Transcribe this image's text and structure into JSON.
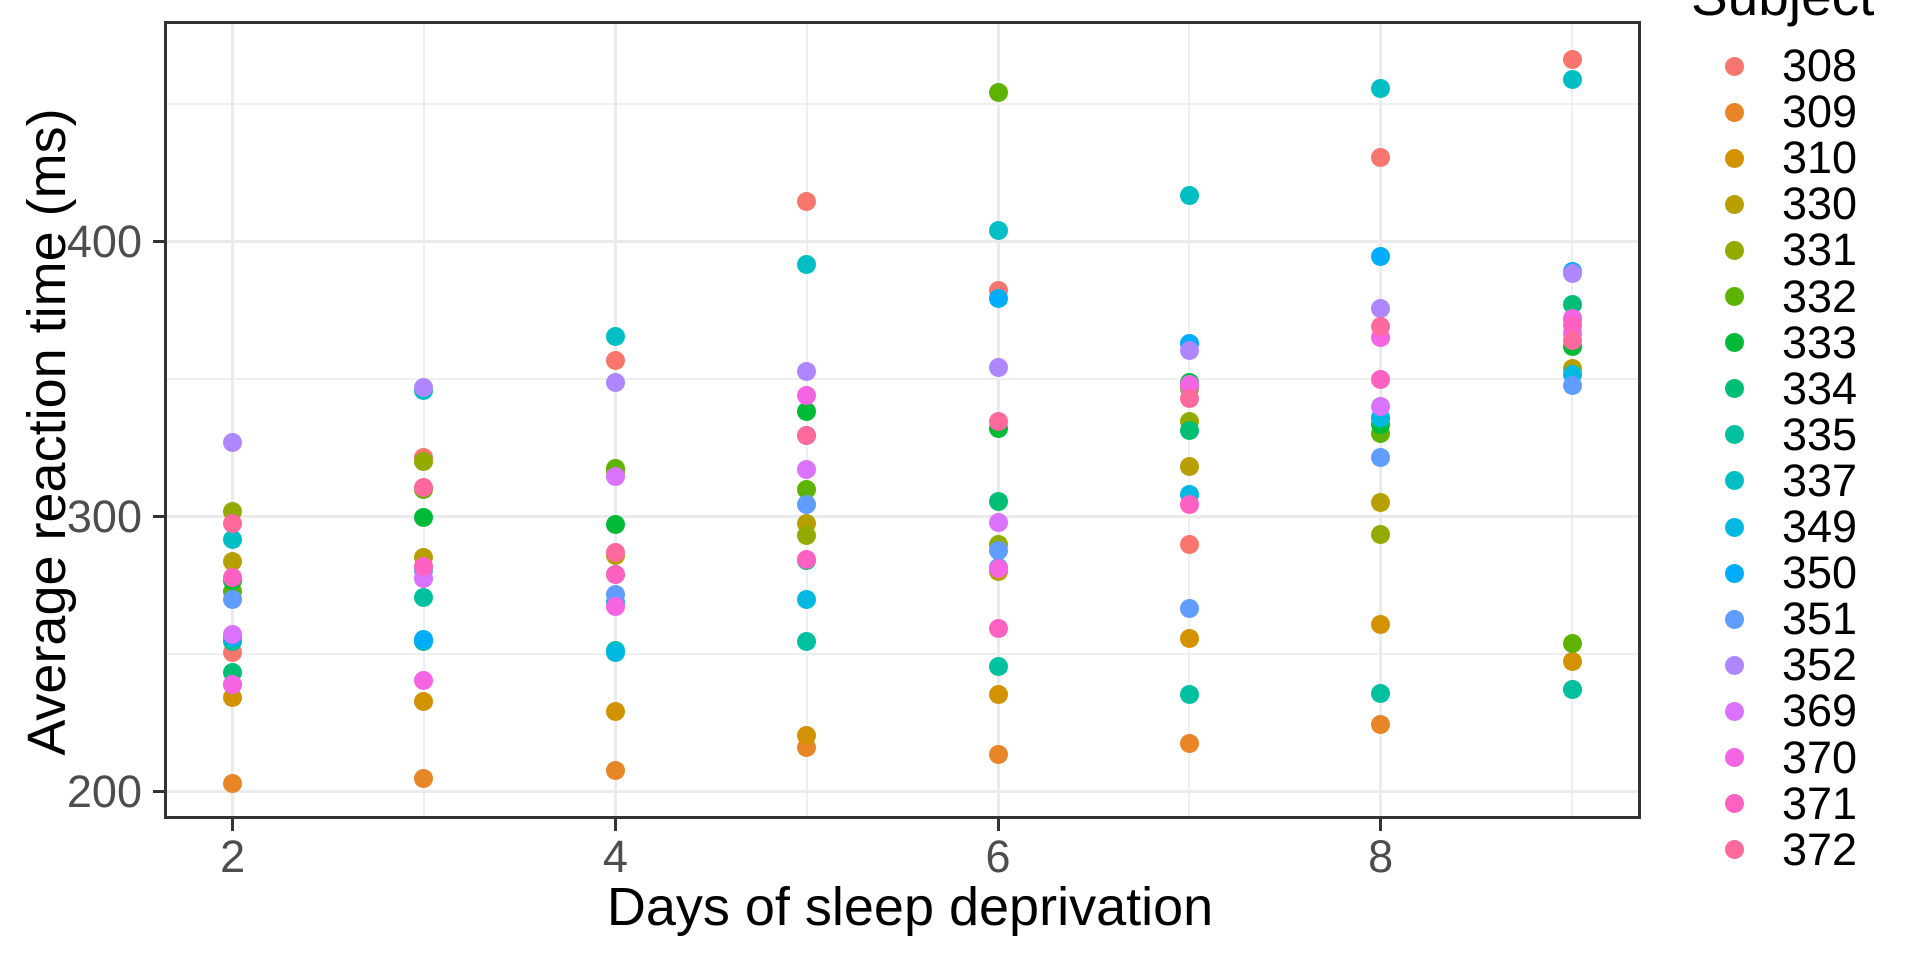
{
  "chart_data": {
    "type": "scatter",
    "xlabel": "Days of sleep deprivation",
    "ylabel": "Average reaction time (ms)",
    "legend_title": "Subject",
    "legend_position": "right-top",
    "grid": true,
    "x": [
      2,
      3,
      4,
      5,
      6,
      7,
      8,
      9
    ],
    "xlim": [
      1.65,
      9.35
    ],
    "ylim": [
      190.9,
      479.6
    ],
    "x_major_ticks": [
      2,
      4,
      6,
      8
    ],
    "x_minor_ticks": [
      3,
      5,
      7,
      9
    ],
    "y_major_ticks": [
      200,
      300,
      400
    ],
    "y_minor_ticks": [
      250,
      350,
      450
    ],
    "series": [
      {
        "name": "308",
        "color": "#F8766D",
        "values": [
          250.8,
          321.4,
          356.9,
          414.7,
          382.2,
          290.1,
          430.6,
          466.4
        ]
      },
      {
        "name": "309",
        "color": "#E88526",
        "values": [
          203.0,
          204.7,
          207.7,
          216.0,
          213.6,
          217.7,
          224.3,
          237.3
        ]
      },
      {
        "name": "310",
        "color": "#D39200",
        "values": [
          234.3,
          232.8,
          229.3,
          220.5,
          235.4,
          255.8,
          261.0,
          247.5
        ]
      },
      {
        "name": "330",
        "color": "#B79F00",
        "values": [
          283.9,
          285.1,
          285.8,
          297.6,
          280.2,
          318.3,
          305.3,
          354.0
        ]
      },
      {
        "name": "331",
        "color": "#93AA00",
        "values": [
          301.8,
          320.1,
          316.3,
          293.3,
          290.1,
          334.8,
          293.7,
          371.6
        ]
      },
      {
        "name": "332",
        "color": "#5EB300",
        "values": [
          273.0,
          309.8,
          317.5,
          310.0,
          454.2,
          346.8,
          330.3,
          253.9
        ]
      },
      {
        "name": "333",
        "color": "#00BA38",
        "values": [
          276.8,
          299.8,
          297.2,
          338.2,
          332.0,
          348.8,
          333.4,
          362.0
        ]
      },
      {
        "name": "334",
        "color": "#00BF74",
        "values": [
          243.4,
          254.7,
          279.0,
          284.2,
          305.5,
          331.5,
          335.7,
          377.3
        ]
      },
      {
        "name": "335",
        "color": "#00C19F",
        "values": [
          254.5,
          270.8,
          251.5,
          254.6,
          245.5,
          235.3,
          235.8,
          237.2
        ]
      },
      {
        "name": "337",
        "color": "#00BFC4",
        "values": [
          291.6,
          346.1,
          365.7,
          391.8,
          404.3,
          416.7,
          455.9,
          458.9
        ]
      },
      {
        "name": "349",
        "color": "#00B9E3",
        "values": [
          238.9,
          254.9,
          250.7,
          269.8,
          281.6,
          308.1,
          336.3,
          351.6
        ]
      },
      {
        "name": "350",
        "color": "#00ADFA",
        "values": [
          256.2,
          255.5,
          268.9,
          329.7,
          379.4,
          362.9,
          394.5,
          389.1
        ]
      },
      {
        "name": "351",
        "color": "#619CFF",
        "values": [
          269.9,
          280.6,
          271.8,
          304.6,
          287.7,
          266.6,
          321.5,
          347.6
        ]
      },
      {
        "name": "352",
        "color": "#AE87FF",
        "values": [
          326.9,
          346.9,
          348.7,
          352.8,
          354.4,
          360.4,
          375.6,
          388.5
        ]
      },
      {
        "name": "369",
        "color": "#DB72FB",
        "values": [
          257.2,
          277.7,
          314.8,
          317.2,
          298.1,
          348.1,
          340.3,
          366.5
        ]
      },
      {
        "name": "370",
        "color": "#F564E3",
        "values": [
          238.9,
          240.5,
          267.5,
          344.2,
          281.1,
          347.6,
          365.2,
          372.2
        ]
      },
      {
        "name": "371",
        "color": "#FF61C3",
        "values": [
          277.9,
          281.8,
          279.2,
          284.5,
          259.3,
          304.6,
          350.1,
          369.5
        ]
      },
      {
        "name": "372",
        "color": "#FF699C",
        "values": [
          297.6,
          310.6,
          287.2,
          329.6,
          334.5,
          343.2,
          369.1,
          364.1
        ]
      }
    ]
  },
  "theme": {
    "background": "#FFFFFF",
    "panel_border": "#333333",
    "grid_major": "#EBEBEB",
    "grid_minor": "#EFEFEF",
    "tick_color": "#333333",
    "tick_label_color": "#4D4D4D",
    "title_color": "#000000"
  }
}
